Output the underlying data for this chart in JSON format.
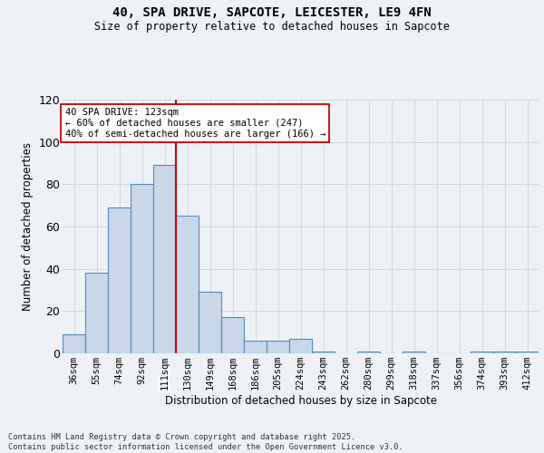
{
  "title_line1": "40, SPA DRIVE, SAPCOTE, LEICESTER, LE9 4FN",
  "title_line2": "Size of property relative to detached houses in Sapcote",
  "xlabel": "Distribution of detached houses by size in Sapcote",
  "ylabel": "Number of detached properties",
  "bin_labels": [
    "36sqm",
    "55sqm",
    "74sqm",
    "92sqm",
    "111sqm",
    "130sqm",
    "149sqm",
    "168sqm",
    "186sqm",
    "205sqm",
    "224sqm",
    "243sqm",
    "262sqm",
    "280sqm",
    "299sqm",
    "318sqm",
    "337sqm",
    "356sqm",
    "374sqm",
    "393sqm",
    "412sqm"
  ],
  "bar_heights": [
    9,
    38,
    69,
    80,
    89,
    65,
    29,
    17,
    6,
    6,
    7,
    1,
    0,
    1,
    0,
    1,
    0,
    0,
    1,
    1,
    1
  ],
  "bar_color": "#c8d8ea",
  "bar_edge_color": "#5588bb",
  "grid_color": "#c8d4e0",
  "vline_color": "#cc0000",
  "annotation_text": "40 SPA DRIVE: 123sqm\n← 60% of detached houses are smaller (247)\n40% of semi-detached houses are larger (166) →",
  "annotation_box_color": "white",
  "annotation_box_edge": "#cc0000",
  "ylim_max": 120,
  "yticks": [
    0,
    20,
    40,
    60,
    80,
    100,
    120
  ],
  "footer_text": "Contains HM Land Registry data © Crown copyright and database right 2025.\nContains public sector information licensed under the Open Government Licence v3.0.",
  "background_color": "#eef2f7",
  "vline_xindex": 4.5
}
